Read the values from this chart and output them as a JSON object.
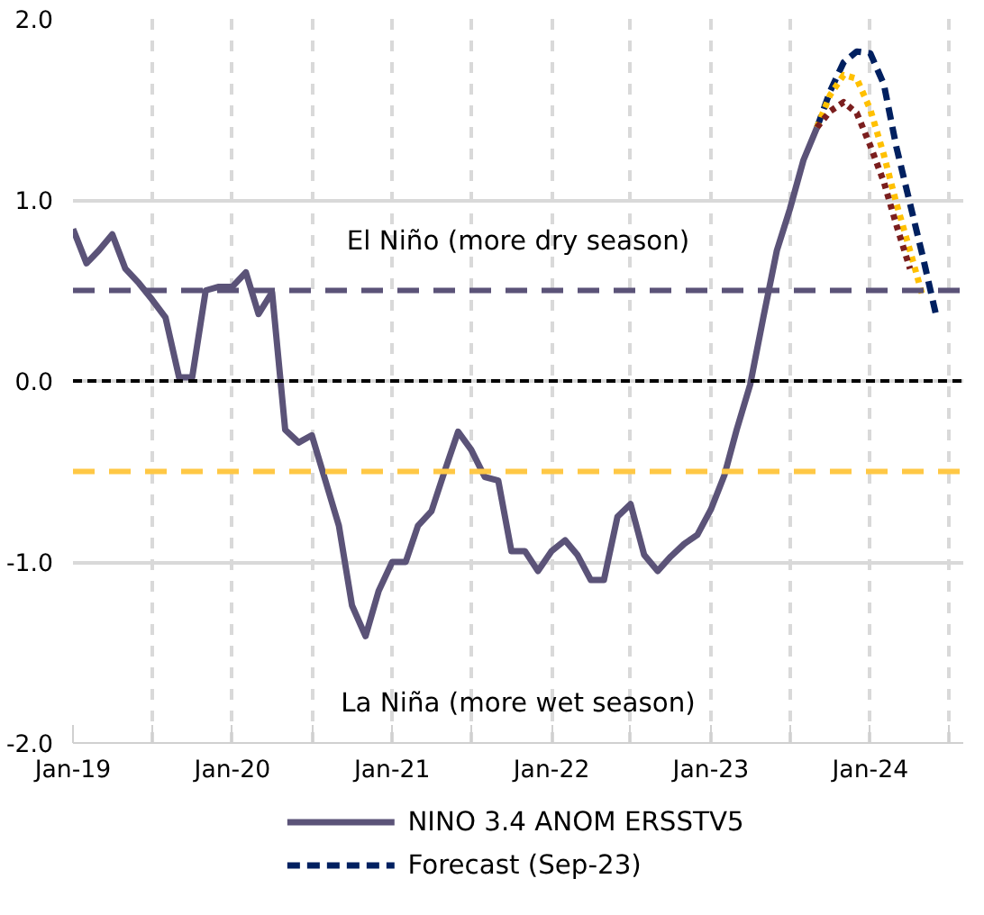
{
  "chart_data": {
    "type": "line",
    "x": [
      "2019-01",
      "2019-02",
      "2019-03",
      "2019-04",
      "2019-05",
      "2019-06",
      "2019-07",
      "2019-08",
      "2019-09",
      "2019-10",
      "2019-11",
      "2019-12",
      "2020-01",
      "2020-02",
      "2020-03",
      "2020-04",
      "2020-05",
      "2020-06",
      "2020-07",
      "2020-08",
      "2020-09",
      "2020-10",
      "2020-11",
      "2020-12",
      "2021-01",
      "2021-02",
      "2021-03",
      "2021-04",
      "2021-05",
      "2021-06",
      "2021-07",
      "2021-08",
      "2021-09",
      "2021-10",
      "2021-11",
      "2021-12",
      "2022-01",
      "2022-02",
      "2022-03",
      "2022-04",
      "2022-05",
      "2022-06",
      "2022-07",
      "2022-08",
      "2022-09",
      "2022-10",
      "2022-11",
      "2022-12",
      "2023-01",
      "2023-02",
      "2023-03",
      "2023-04",
      "2023-05",
      "2023-06",
      "2023-07",
      "2023-08",
      "2023-09"
    ],
    "series": [
      {
        "name": "NINO 3.4 ANOM ERSSTV5",
        "color": "#5b5378",
        "line_style": "solid",
        "values": [
          0.84,
          0.65,
          0.72,
          0.81,
          0.62,
          0.54,
          0.45,
          0.35,
          0.02,
          0.02,
          0.5,
          0.52,
          0.52,
          0.6,
          0.37,
          0.49,
          -0.27,
          -0.34,
          -0.3,
          -0.55,
          -0.8,
          -1.24,
          -1.41,
          -1.16,
          -1.0,
          -1.0,
          -0.8,
          -0.72,
          -0.5,
          -0.28,
          -0.38,
          -0.53,
          -0.55,
          -0.94,
          -0.94,
          -1.05,
          -0.94,
          -0.88,
          -0.96,
          -1.1,
          -1.1,
          -0.75,
          -0.68,
          -0.96,
          -1.05,
          -0.97,
          -0.9,
          -0.85,
          -0.71,
          -0.52,
          -0.27,
          -0.02,
          0.35,
          0.72,
          0.95,
          1.22,
          1.4
        ]
      },
      {
        "color": "#7b1e1e",
        "line_style": "dotted",
        "x": [
          "2023-09",
          "2023-10",
          "2023-11",
          "2023-12",
          "2024-01",
          "2024-02",
          "2024-03",
          "2024-04"
        ],
        "values": [
          1.4,
          1.49,
          1.54,
          1.48,
          1.3,
          1.1,
          0.86,
          0.62
        ]
      },
      {
        "color": "#ffc000",
        "line_style": "dotted",
        "x": [
          "2023-09",
          "2023-10",
          "2023-11",
          "2023-12",
          "2024-01",
          "2024-02",
          "2024-03",
          "2024-04",
          "2024-05"
        ],
        "values": [
          1.4,
          1.58,
          1.69,
          1.67,
          1.5,
          1.25,
          0.98,
          0.72,
          0.46
        ]
      },
      {
        "name": "Forecast (Sep-23)",
        "color": "#002060",
        "line_style": "dashed",
        "x": [
          "2023-09",
          "2023-10",
          "2023-11",
          "2023-12",
          "2024-01",
          "2024-02",
          "2024-03",
          "2024-04",
          "2024-05",
          "2024-06"
        ],
        "values": [
          1.4,
          1.6,
          1.76,
          1.82,
          1.81,
          1.64,
          1.29,
          0.98,
          0.68,
          0.35
        ]
      }
    ],
    "xlim": [
      "2019-01",
      "2024-08"
    ],
    "xticks": [
      {
        "value": "2019-01",
        "label": "Jan-19"
      },
      {
        "value": "2019-07",
        "label": null
      },
      {
        "value": "2020-01",
        "label": "Jan-20"
      },
      {
        "value": "2020-07",
        "label": null
      },
      {
        "value": "2021-01",
        "label": "Jan-21"
      },
      {
        "value": "2021-07",
        "label": null
      },
      {
        "value": "2022-01",
        "label": "Jan-22"
      },
      {
        "value": "2022-07",
        "label": null
      },
      {
        "value": "2023-01",
        "label": "Jan-23"
      },
      {
        "value": "2023-07",
        "label": null
      },
      {
        "value": "2024-01",
        "label": "Jan-24"
      },
      {
        "value": "2024-07",
        "label": null
      }
    ],
    "ylim": [
      -2,
      2
    ],
    "yticks": [
      {
        "value": -2,
        "label": "-2.0"
      },
      {
        "value": -1,
        "label": "-1.0"
      },
      {
        "value": 0,
        "label": "0.0"
      },
      {
        "value": 1,
        "label": "1.0"
      },
      {
        "value": 2,
        "label": "2.0"
      }
    ],
    "ref_lines": [
      {
        "axis": "y",
        "value": 0.5,
        "color": "#5b5378",
        "line_style": "dashed"
      },
      {
        "axis": "y",
        "value": -0.5,
        "color": "#ffc845",
        "line_style": "dashed"
      },
      {
        "axis": "y",
        "value": 0,
        "color": "#000000",
        "line_style": "dotted"
      }
    ],
    "annotations": [
      "El Niño (more dry season)",
      "La Niña (more wet season)"
    ],
    "grid": true,
    "legend": "bottom"
  }
}
